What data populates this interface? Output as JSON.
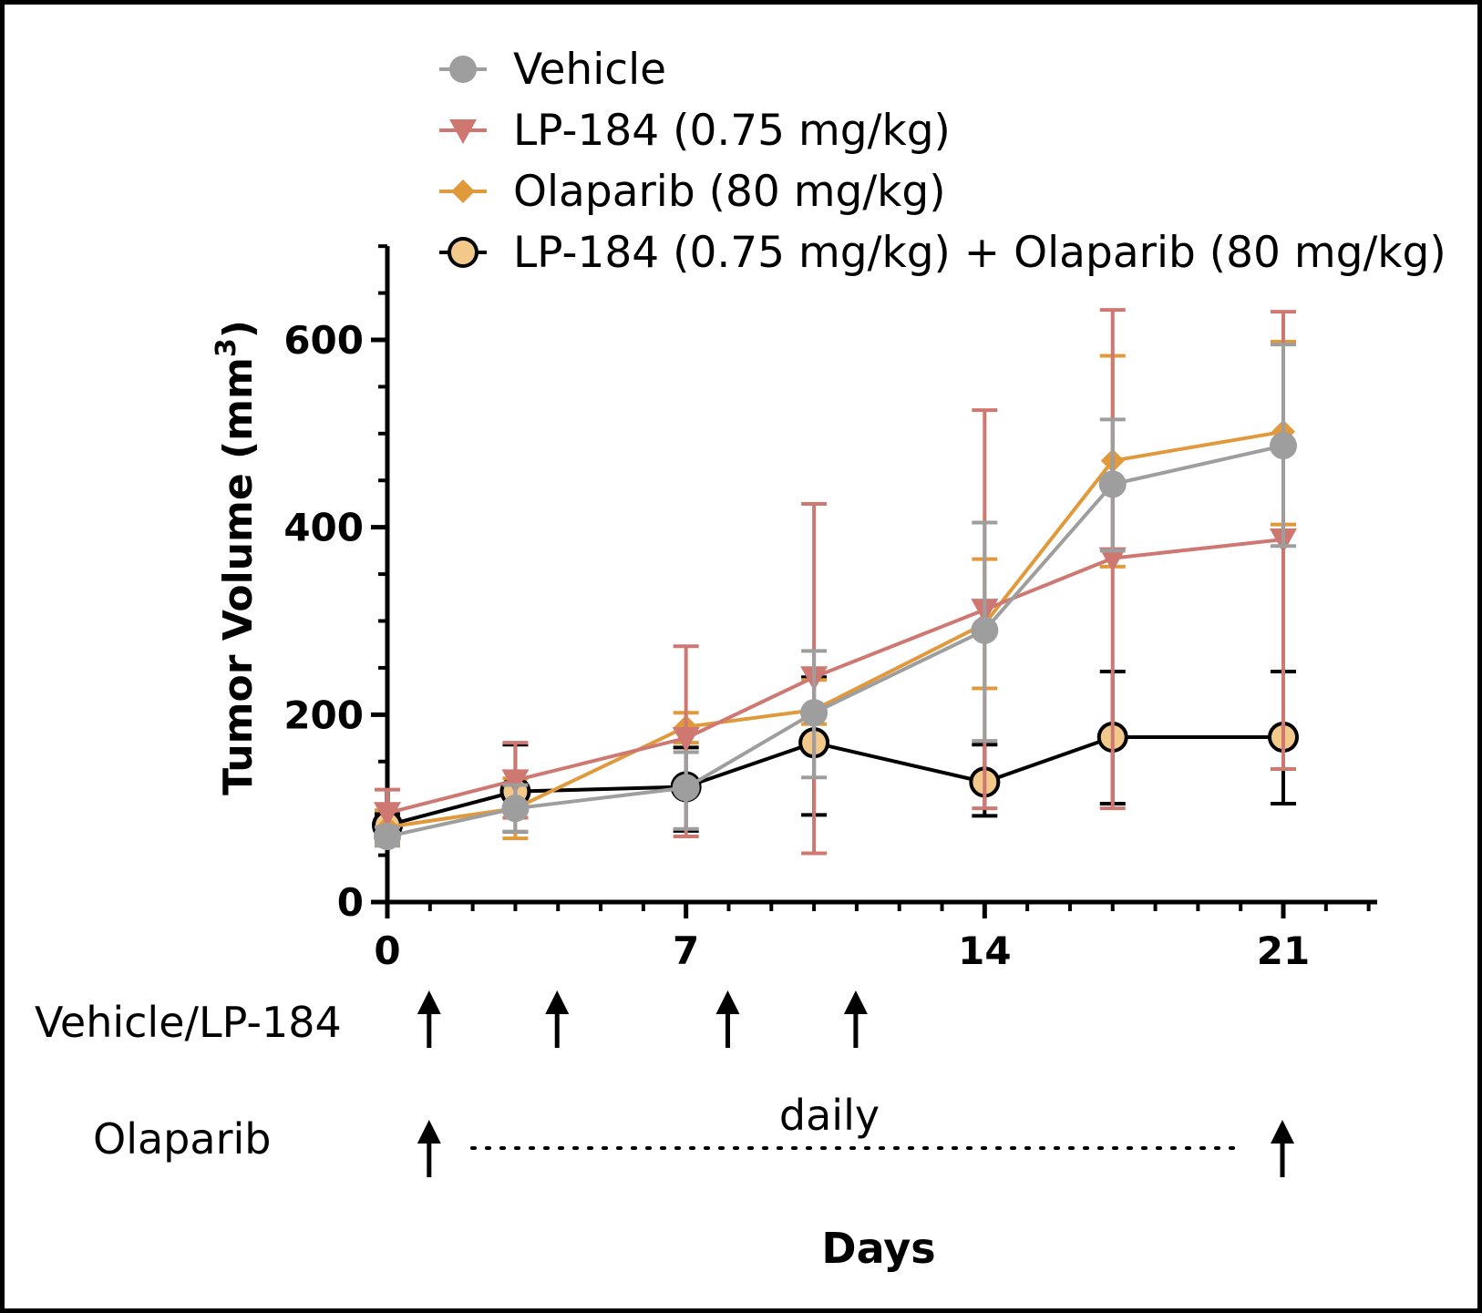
{
  "chart_data": {
    "type": "line",
    "title": "",
    "xlabel": "Days",
    "ylabel": "Tumor Volume (mm",
    "ylabel_superscript": "3",
    "ylabel_close": ")",
    "xlim": [
      0,
      23.2
    ],
    "ylim": [
      0,
      700
    ],
    "xticks": [
      0,
      7,
      14,
      21
    ],
    "xtick_labels": [
      "0",
      "7",
      "14",
      "21"
    ],
    "yticks": [
      0,
      200,
      400,
      600
    ],
    "ytick_labels": [
      "0",
      "200",
      "400",
      "600"
    ],
    "grid": false,
    "legend_position": "top",
    "x": [
      0,
      3,
      7,
      10,
      14,
      17,
      21
    ],
    "series": [
      {
        "name": "Vehicle",
        "color": "#9e9e9e",
        "marker": "circle",
        "values": [
          70,
          100,
          122,
          202,
          290,
          446,
          487
        ],
        "err_low": [
          60,
          75,
          78,
          133,
          172,
          375,
          380
        ],
        "err_high": [
          80,
          125,
          160,
          268,
          405,
          515,
          595
        ]
      },
      {
        "name": "LP-184 (0.75 mg/kg)",
        "color": "#cf7872",
        "marker": "triangle-down",
        "values": [
          95,
          130,
          175,
          240,
          312,
          367,
          387
        ],
        "err_low": [
          70,
          90,
          70,
          52,
          100,
          100,
          142
        ],
        "err_high": [
          120,
          170,
          273,
          425,
          525,
          632,
          630
        ]
      },
      {
        "name": "Olaparib (80 mg/kg)",
        "color": "#e09a3c",
        "marker": "diamond",
        "values": [
          80,
          100,
          187,
          205,
          297,
          471,
          502
        ],
        "err_low": [
          62,
          68,
          170,
          190,
          228,
          358,
          403
        ],
        "err_high": [
          98,
          132,
          202,
          237,
          366,
          583,
          598
        ]
      },
      {
        "name": "LP-184 (0.75 mg/kg) + Olaparib (80 mg/kg)",
        "color": "#000000",
        "fill": "#f2c98a",
        "marker": "circle-open",
        "values": [
          82,
          118,
          123,
          170,
          128,
          176,
          176
        ],
        "err_low": [
          70,
          75,
          76,
          93,
          92,
          105,
          105
        ],
        "err_high": [
          94,
          168,
          165,
          240,
          168,
          246,
          246
        ]
      }
    ],
    "annotations": {
      "vehicle_lp184_label": "Vehicle/LP-184",
      "vehicle_lp184_dose_days": [
        1,
        4,
        8,
        11
      ],
      "olaparib_label": "Olaparib",
      "olaparib_dose_days": [
        1,
        21
      ],
      "daily_label": "daily"
    }
  }
}
